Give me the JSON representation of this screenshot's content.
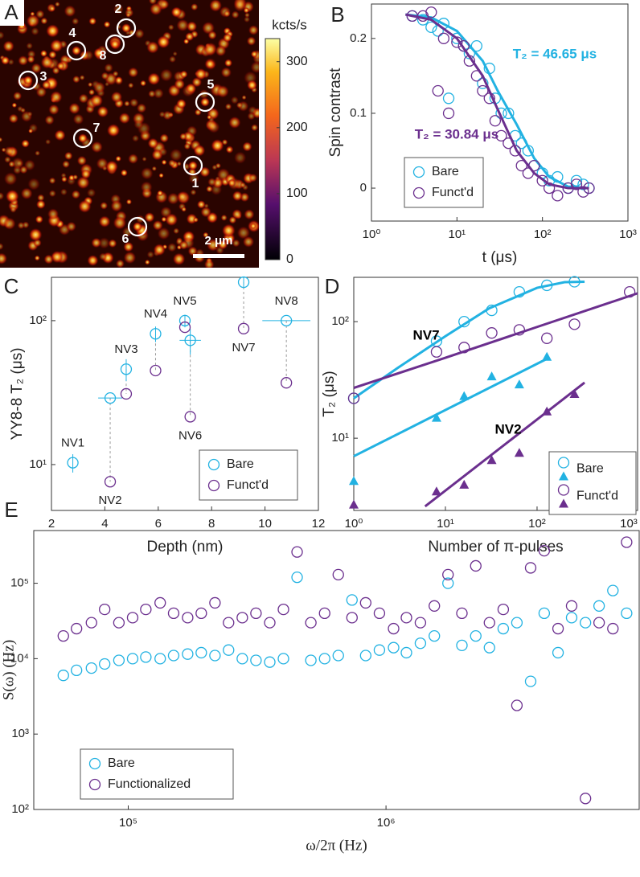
{
  "chart_data": [
    {
      "type": "image",
      "panel_label": "A",
      "colorbar_label": "kcts/s",
      "clim": [
        0,
        335
      ],
      "cticks": [
        0,
        100,
        200,
        300
      ],
      "markers": [
        "1",
        "2",
        "3",
        "4",
        "5",
        "6",
        "7",
        "8"
      ],
      "scalebar_label": "2 μm"
    },
    {
      "type": "scatter",
      "panel_label": "B",
      "xlabel": "t (μs)",
      "ylabel": "Spin contrast",
      "xscale": "log",
      "yscale": "linear",
      "xlim": [
        1,
        1000
      ],
      "xticks": [
        {
          "value": 1,
          "label": "10⁰"
        },
        {
          "value": 10,
          "label": "10¹"
        },
        {
          "value": 100,
          "label": "10²"
        },
        {
          "value": 1000,
          "label": "10³"
        }
      ],
      "ylim": [
        -0.044,
        0.246
      ],
      "yticks": [
        0,
        0.1,
        0.2
      ],
      "legend": "lower left",
      "x": [
        3,
        4,
        5,
        6,
        7,
        8,
        10,
        12,
        14,
        17,
        20,
        24,
        28,
        33,
        40,
        48,
        57,
        68,
        80,
        100,
        120,
        150,
        200,
        250,
        300,
        350
      ],
      "fit_x": [
        2.5,
        5,
        10,
        20,
        30,
        50,
        80,
        120,
        200,
        350
      ],
      "series": [
        {
          "name": "Bare",
          "color": "#22b2e2",
          "marker": "circle",
          "values": [
            0.23,
            0.225,
            0.215,
            0.21,
            0.22,
            0.12,
            0.2,
            0.19,
            0.18,
            0.19,
            0.14,
            0.16,
            0.12,
            0.1,
            0.1,
            0.07,
            0.06,
            0.05,
            0.03,
            0.02,
            0.01,
            0.015,
            0.0,
            0.01,
            0.005,
            0.0
          ],
          "fit": [
            0.232,
            0.228,
            0.21,
            0.17,
            0.13,
            0.085,
            0.04,
            0.015,
            0.002,
            0
          ]
        },
        {
          "name": "Funct'd",
          "color": "#6b2f8e",
          "marker": "circle",
          "values": [
            0.23,
            0.23,
            0.235,
            0.13,
            0.2,
            0.1,
            0.195,
            0.19,
            0.17,
            0.15,
            0.13,
            0.12,
            0.09,
            0.07,
            0.06,
            0.05,
            0.03,
            0.02,
            0.03,
            0.01,
            0.0,
            -0.01,
            0.0,
            0.005,
            -0.005,
            0.0
          ],
          "fit": [
            0.232,
            0.225,
            0.2,
            0.15,
            0.105,
            0.05,
            0.02,
            0.005,
            0,
            0
          ]
        }
      ],
      "annotations": [
        {
          "text": "T₂ = 46.65 μs",
          "color": "#22b2e2"
        },
        {
          "text": "T₂ = 30.84 μs",
          "color": "#6b2f8e"
        }
      ]
    },
    {
      "type": "scatter",
      "panel_label": "C",
      "xlabel": "Depth (nm)",
      "ylabel": "YY8-8 T₂ (μs)",
      "xscale": "linear",
      "yscale": "log",
      "xlim": [
        2,
        12
      ],
      "xticks": [
        2,
        4,
        6,
        8,
        10,
        12
      ],
      "ylim": [
        4.8,
        200
      ],
      "yticks": [
        {
          "value": 10,
          "label": "10¹"
        },
        {
          "value": 100,
          "label": "10²"
        }
      ],
      "legend": "lower right",
      "connect": true,
      "categories": [
        "NV1",
        "NV2",
        "NV3",
        "NV4",
        "NV5",
        "NV6",
        "NV7",
        "NV8"
      ],
      "x": [
        2.8,
        4.2,
        4.8,
        5.9,
        7.0,
        7.2,
        9.2,
        10.8
      ],
      "series": [
        {
          "name": "Bare",
          "color": "#22b2e2",
          "marker": "circle",
          "values": [
            10.3,
            29,
            46,
            81,
            100,
            73,
            185,
            100
          ],
          "xerr": [
            0,
            0.45,
            0,
            0,
            0,
            0.4,
            0,
            0.9
          ],
          "yerr": [
            1.5,
            0,
            8,
            10,
            10,
            15,
            15,
            0
          ]
        },
        {
          "name": "Funct'd",
          "color": "#6b2f8e",
          "marker": "circle",
          "values": [
            null,
            7.6,
            31,
            45,
            90,
            21.5,
            88,
            37
          ]
        }
      ]
    },
    {
      "type": "scatter",
      "panel_label": "D",
      "xlabel": "Number of π-pulses",
      "ylabel": "T₂ (μs)",
      "xscale": "log",
      "yscale": "log",
      "xlim": [
        1,
        1250
      ],
      "xticks": [
        {
          "value": 1,
          "label": "10⁰"
        },
        {
          "value": 10,
          "label": "10¹"
        },
        {
          "value": 100,
          "label": "10²"
        },
        {
          "value": 1000,
          "label": "10³"
        }
      ],
      "ylim": [
        2.4,
        240
      ],
      "yticks": [
        {
          "value": 10,
          "label": "10¹"
        },
        {
          "value": 100,
          "label": "10²"
        }
      ],
      "legend": "lower right",
      "series": [
        {
          "name": "Bare",
          "color": "#22b2e2",
          "marker": "circle",
          "x": [
            1,
            8,
            16,
            32,
            64,
            128,
            256
          ],
          "values": [
            22,
            68,
            100,
            125,
            180,
            205,
            220
          ],
          "fit_x": [
            1,
            3,
            10,
            30,
            100,
            200,
            330
          ],
          "fit": [
            22,
            40,
            75,
            130,
            195,
            218,
            220
          ]
        },
        {
          "color": "#22b2e2",
          "marker": "triangle",
          "x": [
            1,
            8,
            16,
            32,
            64,
            128
          ],
          "values": [
            4.3,
            15,
            23,
            34,
            29,
            50
          ],
          "fit_x": [
            1,
            128
          ],
          "fit": [
            7,
            48
          ]
        },
        {
          "name": "Funct'd",
          "color": "#6b2f8e",
          "marker": "circle",
          "x": [
            1,
            8,
            16,
            32,
            64,
            128,
            256,
            1024
          ],
          "values": [
            22,
            55,
            60,
            80,
            85,
            72,
            95,
            180
          ],
          "fit_x": [
            1,
            10,
            100,
            1250
          ],
          "fit": [
            27,
            49,
            90,
            175
          ]
        },
        {
          "color": "#6b2f8e",
          "marker": "triangle",
          "x": [
            1,
            8,
            16,
            32,
            64,
            128,
            256
          ],
          "values": [
            2.7,
            3.5,
            4,
            6.5,
            7.5,
            17,
            24
          ],
          "fit_x": [
            6,
            330
          ],
          "fit": [
            2.6,
            30
          ]
        }
      ],
      "annotations": [
        {
          "text": "NV7",
          "color": "#000000"
        },
        {
          "text": "NV2",
          "color": "#000000"
        }
      ]
    },
    {
      "type": "scatter",
      "panel_label": "E",
      "xlabel": "ω/2π (Hz)",
      "ylabel": "S(ω) (Hz)",
      "xscale": "log",
      "yscale": "log",
      "xlim": [
        43000,
        9600000
      ],
      "xticks": [
        {
          "value": 100000,
          "label": "10⁵"
        },
        {
          "value": 1000000,
          "label": "10⁶"
        }
      ],
      "ylim": [
        100,
        500000
      ],
      "yticks": [
        {
          "value": 100,
          "label": "10²"
        },
        {
          "value": 1000,
          "label": "10³"
        },
        {
          "value": 10000,
          "label": "10⁴"
        },
        {
          "value": 100000,
          "label": "10⁵"
        }
      ],
      "legend": "lower left",
      "x": [
        56000,
        63000,
        72000,
        81000,
        92000,
        104000,
        117000,
        133000,
        150000,
        170000,
        192000,
        217000,
        245000,
        277000,
        313000,
        354000,
        400000,
        452000,
        511000,
        578000,
        653000,
        738000,
        834000,
        943000,
        1070000,
        1200000,
        1360000,
        1540000,
        1740000,
        1970000,
        2230000,
        2520000,
        2850000,
        3220000,
        3640000,
        4110000,
        4650000,
        5250000,
        5940000,
        6710000,
        7590000,
        8580000
      ],
      "series": [
        {
          "name": "Bare",
          "color": "#22b2e2",
          "marker": "circle",
          "values": [
            6000,
            7000,
            7500,
            8500,
            9500,
            10000,
            10500,
            10000,
            11000,
            11500,
            12000,
            11000,
            13000,
            10000,
            9500,
            9000,
            10000,
            120000,
            9500,
            10000,
            11000,
            60000,
            11000,
            13000,
            14000,
            12000,
            16000,
            20000,
            100000,
            15000,
            20000,
            14000,
            25000,
            30000,
            5000,
            40000,
            12000,
            35000,
            30000,
            50000,
            80000,
            40000
          ]
        },
        {
          "name": "Functionalized",
          "color": "#6b2f8e",
          "marker": "circle",
          "values": [
            20000,
            25000,
            30000,
            45000,
            30000,
            35000,
            45000,
            55000,
            40000,
            35000,
            40000,
            55000,
            30000,
            35000,
            40000,
            30000,
            45000,
            260000,
            30000,
            40000,
            130000,
            35000,
            55000,
            40000,
            25000,
            35000,
            30000,
            50000,
            130000,
            40000,
            170000,
            30000,
            45000,
            2400,
            160000,
            270000,
            25000,
            50000,
            140,
            30000,
            25000,
            350000
          ]
        }
      ]
    }
  ]
}
